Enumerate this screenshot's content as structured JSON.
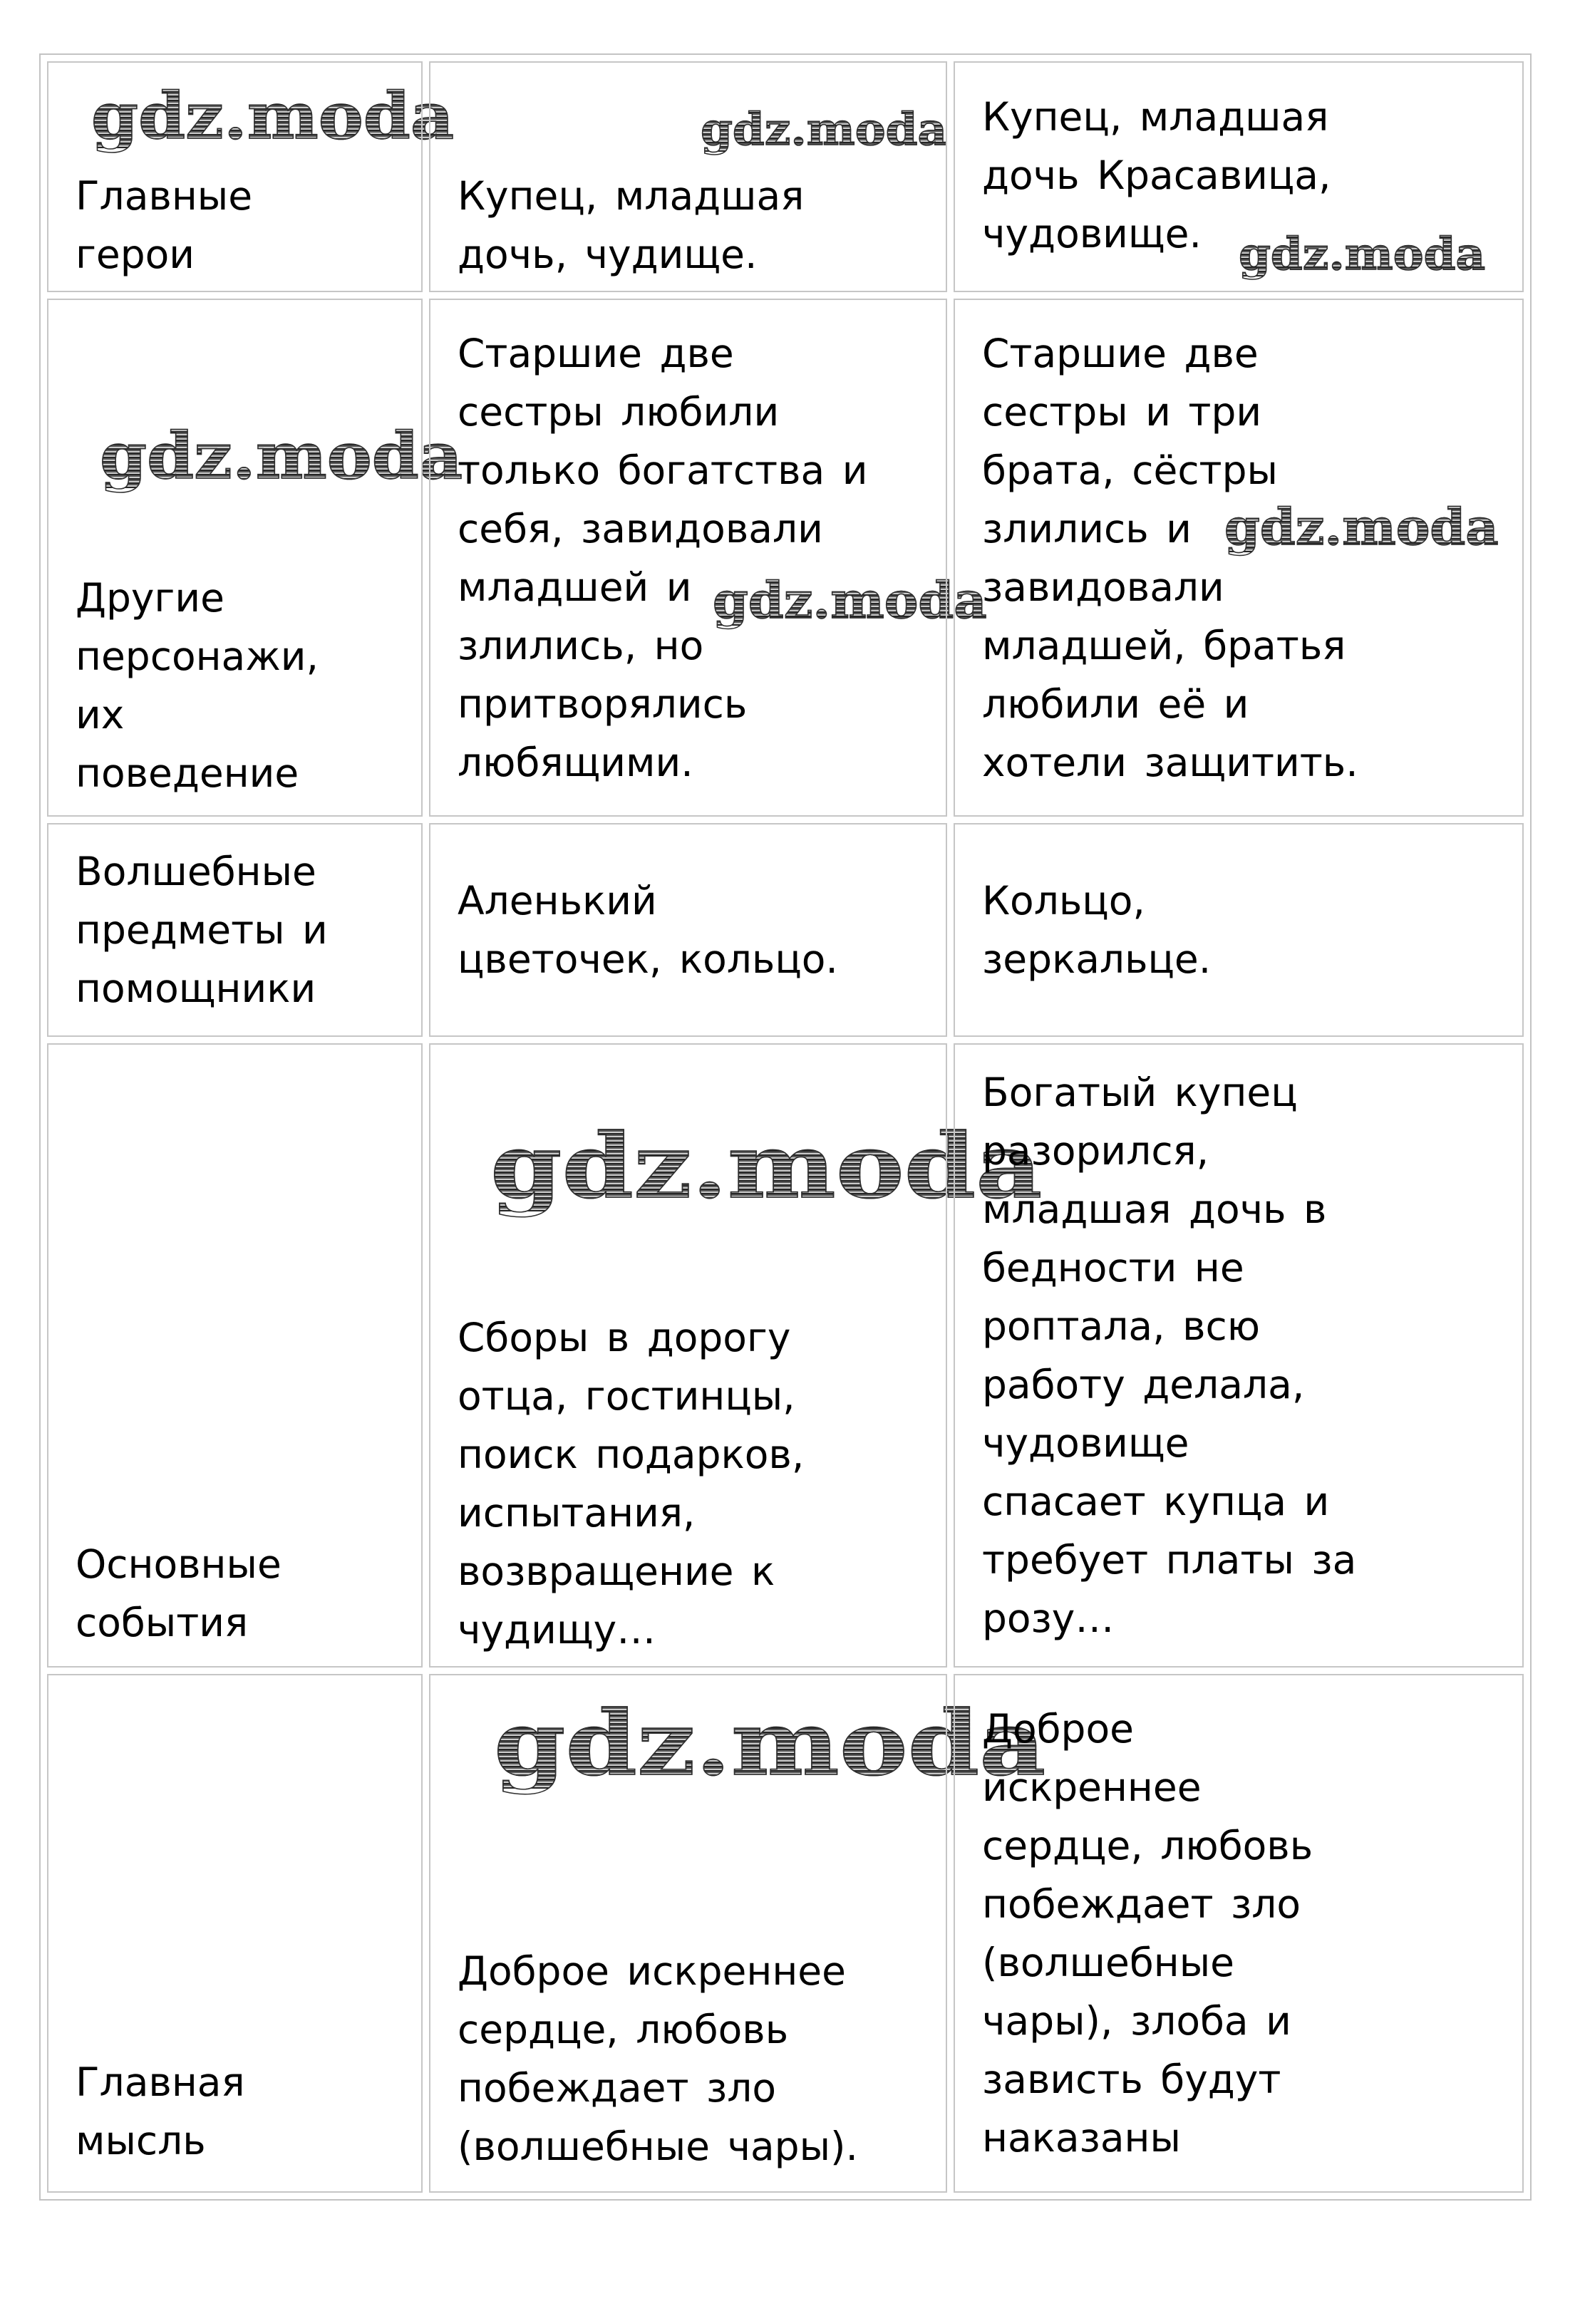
{
  "watermark": {
    "text": "gdz.moda"
  },
  "table": {
    "rows": [
      {
        "cells": [
          "Главные\nгерои",
          "Купец, младшая\nдочь, чудище.",
          "Купец, младшая\nдочь Красавица,\nчудовище."
        ]
      },
      {
        "cells": [
          "Другие\nперсонажи,\nих\nповедение",
          "Старшие две\nсестры любили\nтолько богатства и\nсебя, завидовали\nмладшей и\nзлились, но\nпритворялись\nлюбящими.",
          "Старшие две\nсестры и три\nбрата, сёстры\nзлились и\nзавидовали\nмладшей, братья\nлюбили её и\nхотели защитить."
        ]
      },
      {
        "cells": [
          "Волшебные\nпредметы и\nпомощники",
          "Аленький\nцветочек, кольцо.",
          "Кольцо,\nзеркальце."
        ]
      },
      {
        "cells": [
          "Основные\nсобытия",
          "Сборы в дорогу\nотца, гостинцы,\nпоиск подарков,\nиспытания,\nвозвращение к\nчудищу…",
          "Богатый купец\nразорился,\nмладшая дочь в\nбедности не\nроптала, всю\nработу делала,\nчудовище\nспасает купца и\nтребует платы за\nрозу…"
        ]
      },
      {
        "cells": [
          "Главная\nмысль",
          "Доброе искреннее\nсердце, любовь\nпобеждает зло\n(волшебные чары).",
          "Доброе\nискреннее\nсердце, любовь\nпобеждает зло\n(волшебные\nчары), злоба и\nзависть будут\nнаказаны"
        ]
      }
    ]
  }
}
